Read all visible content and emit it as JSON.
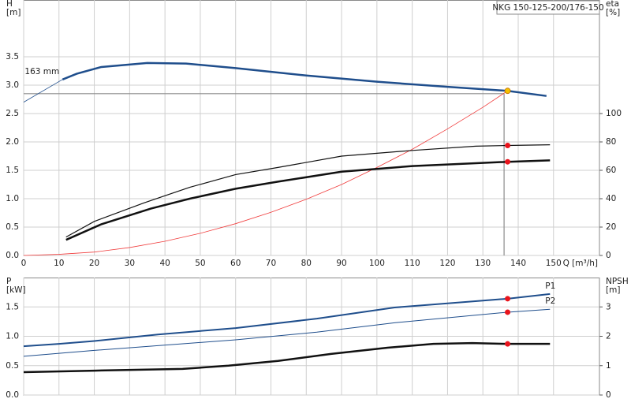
{
  "chart_data": [
    {
      "type": "line",
      "title": "NKG 150-125-200/176-150",
      "y_label": [
        "H",
        "[m]"
      ],
      "y2_label": [
        "eta",
        "[%]"
      ],
      "x_label": "Q [m³/h]",
      "xlim": [
        0,
        163
      ],
      "xticks": [
        0,
        10,
        20,
        30,
        40,
        50,
        60,
        70,
        80,
        90,
        100,
        110,
        120,
        130,
        140,
        150
      ],
      "ylim": [
        0,
        4.5
      ],
      "yticks": [
        {
          "value": 0,
          "label": "0.0"
        },
        0.5,
        {
          "value": 1,
          "label": "1.0"
        },
        1.5,
        {
          "value": 2,
          "label": "2.0"
        },
        2.5,
        {
          "value": 3,
          "label": "3.0"
        },
        3.5
      ],
      "y2lim": [
        0,
        180
      ],
      "y2ticks": [
        0,
        20,
        40,
        60,
        80,
        100
      ],
      "grid": true,
      "series_label": "start",
      "marker_x": 137,
      "marker_color": "#e8141c",
      "crosshair": {
        "x": 136,
        "y": 2.85
      },
      "series": [
        {
          "name": "163 mm",
          "color": "#1f4e8c",
          "width": 2.5,
          "marker": true,
          "marker_color": "#f5c000",
          "x": [
            11,
            15,
            22,
            35,
            46,
            60,
            80,
            100,
            120,
            137,
            148
          ],
          "values": [
            3.1,
            3.2,
            3.32,
            3.39,
            3.38,
            3.3,
            3.17,
            3.06,
            2.97,
            2.9,
            2.81
          ]
        },
        {
          "color": "#1f4e8c",
          "width": 0.8,
          "x": [
            0,
            11
          ],
          "values": [
            2.7,
            3.1
          ]
        },
        {
          "color": "#f03c3c",
          "width": 0.8,
          "x": [
            0,
            10,
            20,
            30,
            40,
            50,
            60,
            70,
            80,
            90,
            100,
            110,
            120,
            130,
            137
          ],
          "values": [
            0,
            0.02,
            0.06,
            0.14,
            0.25,
            0.39,
            0.56,
            0.76,
            0.99,
            1.25,
            1.55,
            1.87,
            2.23,
            2.61,
            2.9
          ]
        },
        {
          "color": "#111111",
          "width": 1.2,
          "axis": "y2",
          "marker": true,
          "x": [
            12,
            20,
            34,
            47,
            60,
            72,
            90,
            110,
            128,
            137,
            149
          ],
          "values": [
            13,
            24,
            37,
            48,
            57,
            62,
            70,
            74,
            77,
            77.5,
            78
          ]
        },
        {
          "color": "#111111",
          "width": 2.5,
          "axis": "y2",
          "marker": true,
          "x": [
            12,
            22,
            36,
            47,
            60,
            72,
            90,
            110,
            128,
            137,
            149
          ],
          "values": [
            11,
            22,
            33,
            40,
            47,
            52,
            59,
            63,
            65,
            66,
            67
          ]
        }
      ]
    },
    {
      "type": "line",
      "y_label": [
        "P",
        "[kW]"
      ],
      "y2_label": [
        "NPSH",
        "[m]"
      ],
      "xlim": [
        0,
        163
      ],
      "xticks": [
        0,
        10,
        20,
        30,
        40,
        50,
        60,
        70,
        80,
        90,
        100,
        110,
        120,
        130,
        140,
        150
      ],
      "show_xtick_labels": false,
      "ylim": [
        0,
        2
      ],
      "yticks": [
        {
          "value": 0,
          "label": "0.0"
        },
        0.5,
        {
          "value": 1,
          "label": "1.0"
        },
        1.5
      ],
      "y2lim": [
        0,
        4
      ],
      "y2ticks": [
        0,
        1,
        2,
        3
      ],
      "grid": true,
      "series_label": "end",
      "marker_x": 137,
      "marker_color": "#e8141c",
      "series": [
        {
          "name": "P1",
          "color": "#1f4e8c",
          "width": 2,
          "marker": true,
          "x": [
            0,
            10,
            20,
            38,
            60,
            83,
            105,
            137,
            149
          ],
          "values": [
            0.83,
            0.87,
            0.92,
            1.03,
            1.14,
            1.3,
            1.49,
            1.64,
            1.72
          ]
        },
        {
          "name": "P2",
          "color": "#1f4e8c",
          "width": 1,
          "marker": true,
          "x": [
            0,
            20,
            60,
            83,
            105,
            137,
            149
          ],
          "values": [
            0.66,
            0.76,
            0.94,
            1.07,
            1.23,
            1.41,
            1.46
          ]
        },
        {
          "color": "#111111",
          "width": 2.5,
          "axis": "y2",
          "marker": true,
          "x": [
            0,
            20,
            45,
            58,
            72,
            87,
            103,
            116,
            127,
            137,
            149
          ],
          "values": [
            0.78,
            0.83,
            0.89,
            1.0,
            1.16,
            1.4,
            1.61,
            1.74,
            1.77,
            1.74,
            1.74
          ]
        }
      ]
    }
  ]
}
